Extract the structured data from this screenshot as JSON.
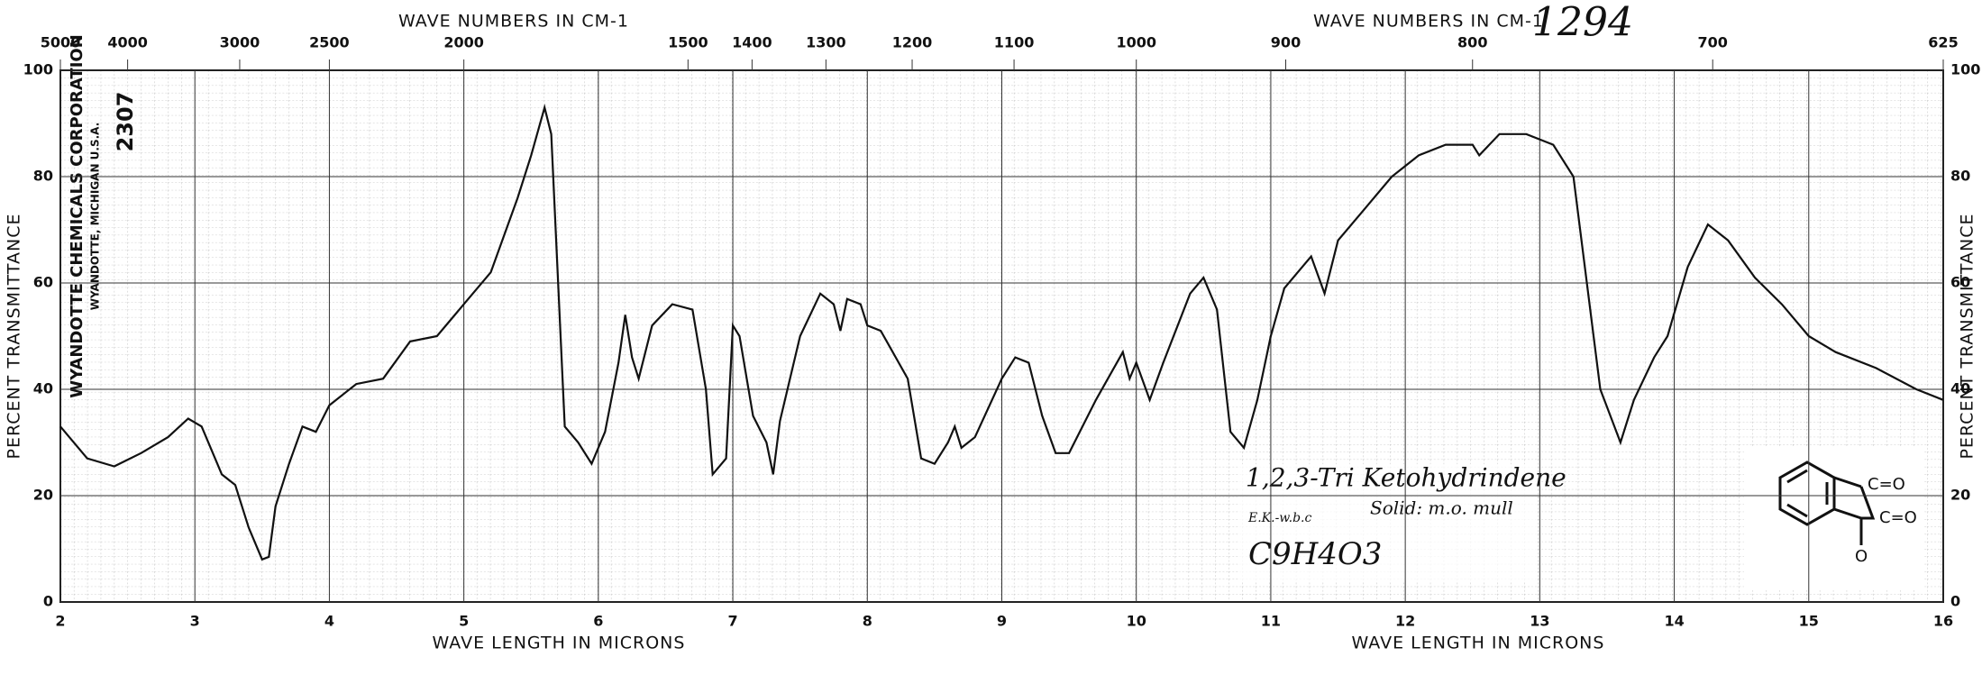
{
  "chart_data": {
    "type": "line",
    "x_label": "WAVE LENGTH IN MICRONS",
    "x2_label": "WAVE NUMBERS IN CM-1",
    "y_label": "PERCENT TRANSMITTANCE",
    "annotations": {
      "number": "1294",
      "company": "WYANDOTTE CHEMICALS CORPORATION",
      "location": "WYANDOTTE, MICHIGAN U.S.A.",
      "chart_no": "2307",
      "compound": "1,2,3-Tri Ketohydrindene",
      "initials": "E.K.-w.b.c",
      "phase": "Solid: m.o. mull",
      "formula": "C9H4O3",
      "groups": [
        "C=O",
        "C=O",
        "O"
      ]
    },
    "xlim": [
      2,
      16
    ],
    "xticks": [
      2,
      3,
      4,
      5,
      6,
      7,
      8,
      9,
      10,
      11,
      12,
      13,
      14,
      15,
      16
    ],
    "x2ticks": [
      5000,
      4000,
      3000,
      2500,
      2000,
      1500,
      1400,
      1300,
      1200,
      1100,
      1000,
      900,
      800,
      700,
      625
    ],
    "ylim": [
      0,
      100
    ],
    "yticks": [
      0,
      20,
      40,
      60,
      80,
      100
    ],
    "grid": true,
    "x": [
      2.0,
      2.2,
      2.4,
      2.6,
      2.8,
      2.95,
      3.05,
      3.2,
      3.3,
      3.4,
      3.5,
      3.55,
      3.6,
      3.7,
      3.8,
      3.9,
      4.0,
      4.2,
      4.4,
      4.6,
      4.8,
      5.0,
      5.2,
      5.4,
      5.5,
      5.6,
      5.65,
      5.75,
      5.85,
      5.95,
      6.05,
      6.15,
      6.2,
      6.25,
      6.3,
      6.4,
      6.55,
      6.7,
      6.8,
      6.85,
      6.95,
      7.0,
      7.05,
      7.15,
      7.25,
      7.3,
      7.35,
      7.5,
      7.65,
      7.75,
      7.8,
      7.85,
      7.95,
      8.0,
      8.1,
      8.3,
      8.4,
      8.5,
      8.6,
      8.65,
      8.7,
      8.8,
      9.0,
      9.1,
      9.2,
      9.3,
      9.4,
      9.5,
      9.7,
      9.9,
      9.95,
      10.0,
      10.1,
      10.2,
      10.4,
      10.5,
      10.6,
      10.7,
      10.8,
      10.9,
      11.0,
      11.1,
      11.2,
      11.3,
      11.4,
      11.5,
      11.7,
      11.9,
      12.1,
      12.3,
      12.5,
      12.55,
      12.7,
      12.9,
      13.1,
      13.25,
      13.35,
      13.45,
      13.6,
      13.7,
      13.85,
      13.95,
      14.1,
      14.25,
      14.4,
      14.6,
      14.8,
      15.0,
      15.2,
      15.5,
      15.8,
      16.0
    ],
    "series": [
      {
        "color": "#111111",
        "values": [
          33,
          27,
          25.5,
          28,
          31,
          34.5,
          33,
          24,
          22,
          14,
          8,
          8.5,
          18,
          26,
          33,
          32,
          37,
          41,
          42,
          49,
          50,
          56,
          62,
          76,
          84,
          93,
          88,
          33,
          30,
          26,
          32,
          45,
          54,
          46,
          42,
          52,
          56,
          55,
          40,
          24,
          27,
          52,
          50,
          35,
          30,
          24,
          34,
          50,
          58,
          56,
          51,
          57,
          56,
          52,
          51,
          42,
          27,
          26,
          30,
          33,
          29,
          31,
          42,
          46,
          45,
          35,
          28,
          28,
          38,
          47,
          42,
          45,
          38,
          45,
          58,
          61,
          55,
          32,
          29,
          38,
          50,
          59,
          62,
          65,
          58,
          68,
          74,
          80,
          84,
          86,
          86,
          84,
          88,
          88,
          86,
          80,
          60,
          40,
          30,
          38,
          46,
          50,
          63,
          71,
          68,
          61,
          56,
          50,
          47,
          44,
          40,
          38
        ]
      }
    ]
  }
}
